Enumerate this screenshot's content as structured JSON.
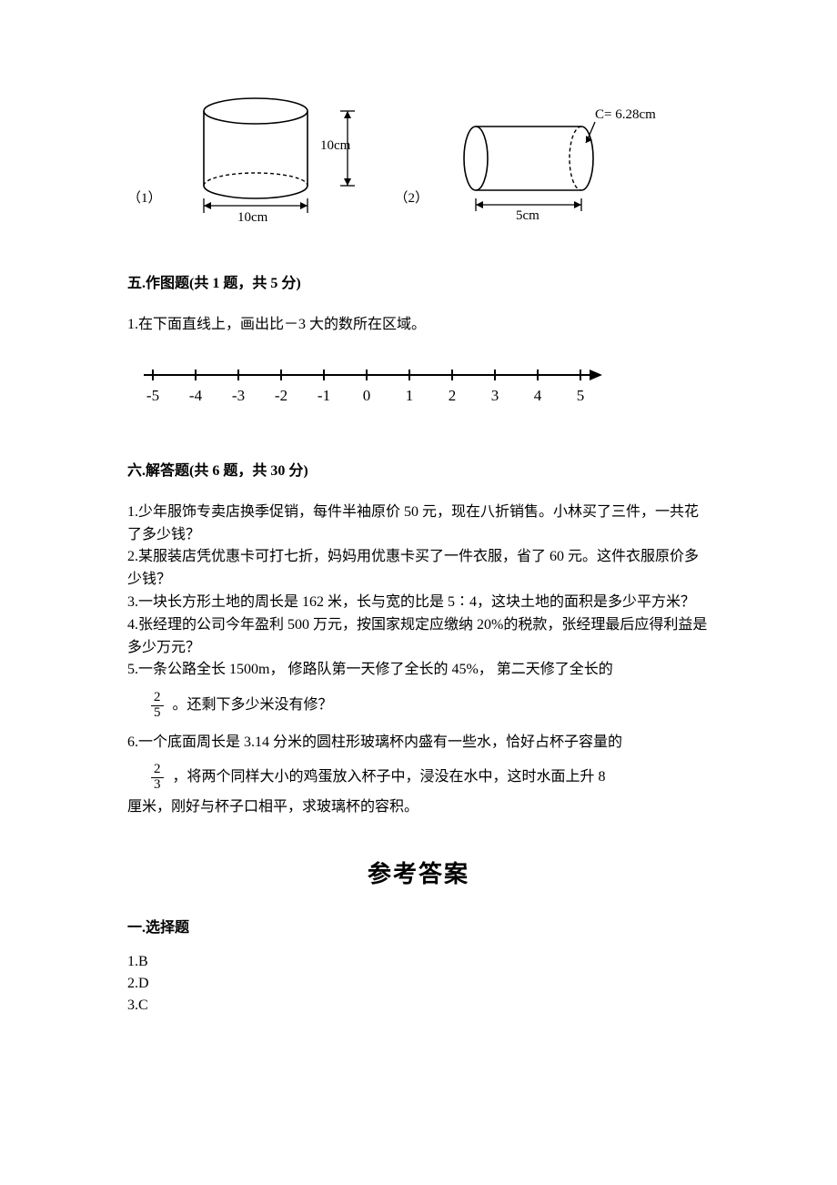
{
  "figures": {
    "label1": "（1）",
    "label2": "（2）",
    "fig1": {
      "diameter_label": "10cm",
      "height_label": "10cm",
      "stroke": "#000000",
      "fill": "#ffffff",
      "label_fontsize": 14
    },
    "fig2": {
      "length_label": "5cm",
      "circumference_label": "C= 6.28cm",
      "stroke": "#000000",
      "fill": "#ffffff",
      "label_fontsize": 14
    }
  },
  "section5": {
    "heading": "五.作图题(共 1 题，共 5 分)",
    "q1": "1.在下面直线上，画出比－3 大的数所在区域。",
    "numberline": {
      "ticks": [
        "-5",
        "-4",
        "-3",
        "-2",
        "-1",
        "0",
        "1",
        "2",
        "3",
        "4",
        "5"
      ],
      "stroke": "#000000",
      "tick_height": 10,
      "label_fontsize": 17,
      "label_font": "serif"
    }
  },
  "section6": {
    "heading": "六.解答题(共 6 题，共 30 分)",
    "q1": "1.少年服饰专卖店换季促销，每件半袖原价 50 元，现在八折销售。小林买了三件，一共花了多少钱？",
    "q2": "2.某服装店凭优惠卡可打七折，妈妈用优惠卡买了一件衣服，省了 60 元。这件衣服原价多少钱？",
    "q3": "3.一块长方形土地的周长是 162 米，长与宽的比是 5∶4，这块土地的面积是多少平方米？",
    "q4": "4.张经理的公司今年盈利 500 万元，按国家规定应缴纳 20%的税款，张经理最后应得利益是多少万元？",
    "q5a": "5.一条公路全长 1500m，  修路队第一天修了全长的 45%，  第二天修了全长的",
    "q5_frac_num": "2",
    "q5_frac_den": "5",
    "q5b": " 。还剩下多少米没有修？",
    "q6a": "6.一个底面周长是 3.14 分米的圆柱形玻璃杯内盛有一些水，恰好占杯子容量的",
    "q6_frac_num": "2",
    "q6_frac_den": "3",
    "q6b": "，将两个同样大小的鸡蛋放入杯子中，浸没在水中，这时水面上升 8",
    "q6c": "厘米，刚好与杯子口相平，求玻璃杯的容积。"
  },
  "answers": {
    "title": "参考答案",
    "section1_heading": "一.选择题",
    "a1": "1.B",
    "a2": "2.D",
    "a3": "3.C"
  },
  "style": {
    "text_color": "#000000",
    "body_fontsize": 16,
    "heading_fontsize": 16,
    "answer_title_fontsize": 26
  }
}
